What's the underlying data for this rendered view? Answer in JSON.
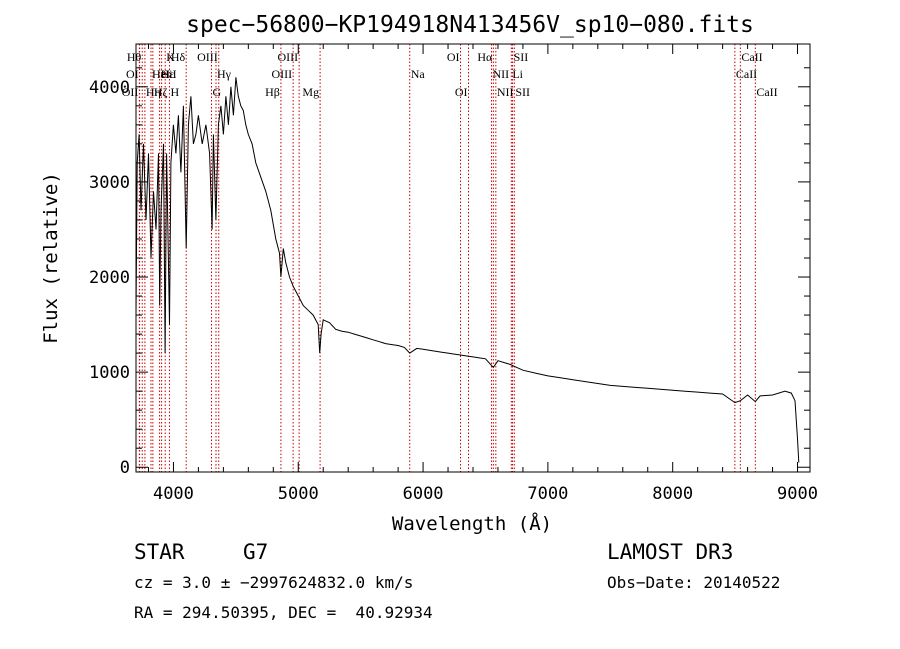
{
  "chart_data": {
    "type": "line",
    "title": "spec−56800−KP194918N413456V_sp10−080.fits",
    "xlabel": "Wavelength (Å)",
    "ylabel": "Flux (relative)",
    "xlim": [
      3700,
      9100
    ],
    "ylim": [
      -50,
      4450
    ],
    "xticks": [
      4000,
      5000,
      6000,
      7000,
      8000,
      9000
    ],
    "xtick_labels": [
      "4000",
      "5000",
      "6000",
      "7000",
      "8000",
      "9000"
    ],
    "yticks": [
      0,
      1000,
      2000,
      3000,
      4000
    ],
    "ytick_labels": [
      "0",
      "1000",
      "2000",
      "3000",
      "4000"
    ],
    "series": [
      {
        "name": "flux",
        "x": [
          3700,
          3710,
          3725,
          3740,
          3760,
          3780,
          3800,
          3820,
          3840,
          3860,
          3880,
          3890,
          3900,
          3920,
          3933,
          3945,
          3968,
          3980,
          4000,
          4020,
          4040,
          4060,
          4080,
          4102,
          4120,
          4140,
          4160,
          4180,
          4200,
          4230,
          4260,
          4290,
          4310,
          4320,
          4340,
          4360,
          4380,
          4400,
          4420,
          4440,
          4460,
          4480,
          4500,
          4520,
          4540,
          4560,
          4580,
          4600,
          4630,
          4660,
          4700,
          4740,
          4780,
          4820,
          4850,
          4861,
          4880,
          4900,
          4930,
          4960,
          5000,
          5040,
          5080,
          5120,
          5160,
          5172,
          5183,
          5200,
          5250,
          5300,
          5350,
          5400,
          5450,
          5500,
          5550,
          5600,
          5650,
          5700,
          5750,
          5800,
          5850,
          5893,
          5950,
          6000,
          6050,
          6100,
          6150,
          6200,
          6250,
          6300,
          6350,
          6400,
          6450,
          6500,
          6563,
          6600,
          6650,
          6700,
          6750,
          6800,
          6900,
          7000,
          7100,
          7200,
          7300,
          7400,
          7500,
          7600,
          7700,
          7800,
          7900,
          8000,
          8100,
          8200,
          8300,
          8400,
          8498,
          8542,
          8600,
          8662,
          8700,
          8800,
          8900,
          8950,
          8980,
          9000,
          9010
        ],
        "y": [
          1600,
          3200,
          3500,
          2700,
          3400,
          2600,
          3300,
          2200,
          2900,
          2500,
          3300,
          1700,
          2700,
          3400,
          1200,
          3300,
          1500,
          3200,
          3600,
          3300,
          3700,
          3100,
          3800,
          2300,
          3600,
          3900,
          3400,
          3500,
          3700,
          3400,
          3600,
          3300,
          2500,
          3500,
          2600,
          3600,
          3800,
          3500,
          3900,
          3600,
          4000,
          3700,
          4100,
          3900,
          3800,
          3750,
          3600,
          3500,
          3400,
          3200,
          3050,
          2900,
          2700,
          2400,
          2250,
          2000,
          2300,
          2150,
          2000,
          1900,
          1800,
          1700,
          1650,
          1600,
          1500,
          1200,
          1400,
          1550,
          1520,
          1450,
          1430,
          1420,
          1400,
          1380,
          1360,
          1340,
          1320,
          1300,
          1290,
          1280,
          1260,
          1200,
          1250,
          1240,
          1230,
          1220,
          1210,
          1200,
          1190,
          1180,
          1170,
          1160,
          1150,
          1140,
          1050,
          1120,
          1100,
          1080,
          1050,
          1020,
          990,
          960,
          940,
          920,
          900,
          880,
          860,
          850,
          840,
          830,
          820,
          810,
          800,
          790,
          780,
          770,
          680,
          700,
          760,
          690,
          750,
          760,
          800,
          780,
          700,
          300,
          50
        ]
      }
    ],
    "line_markers": [
      {
        "x": 3727,
        "label": "OII",
        "row": 2,
        "side": "left"
      },
      {
        "x": 3729,
        "label": "OI",
        "row": 1,
        "side": "left"
      },
      {
        "x": 3750,
        "label": "Hθ",
        "row": 0,
        "side": "left"
      },
      {
        "x": 3771,
        "label": "Hη",
        "row": 2,
        "side": "right"
      },
      {
        "x": 3820,
        "label": "HeI",
        "row": 1,
        "side": "right"
      },
      {
        "x": 3835,
        "label": "Hζ",
        "row": 2,
        "side": "right"
      },
      {
        "x": 3889,
        "label": "Hε",
        "row": 1,
        "side": "right"
      },
      {
        "x": 3905,
        "label": "SiI",
        "row": 1,
        "side": "right"
      },
      {
        "x": 3934,
        "label": "K",
        "row": 0,
        "side": "right"
      },
      {
        "x": 3968,
        "label": "H",
        "row": 2,
        "side": "right"
      },
      {
        "x": 4102,
        "label": "Hδ",
        "row": 0,
        "side": "left"
      },
      {
        "x": 4305,
        "label": "G",
        "row": 2,
        "side": "right"
      },
      {
        "x": 4341,
        "label": "Hγ",
        "row": 1,
        "side": "right"
      },
      {
        "x": 4363,
        "label": "OIII",
        "row": 0,
        "side": "left"
      },
      {
        "x": 4861,
        "label": "Hβ",
        "row": 2,
        "side": "left"
      },
      {
        "x": 4959,
        "label": "OIII",
        "row": 1,
        "side": "left"
      },
      {
        "x": 5007,
        "label": "OIII",
        "row": 0,
        "side": "left"
      },
      {
        "x": 5175,
        "label": "Mg",
        "row": 2,
        "side": "left"
      },
      {
        "x": 5893,
        "label": "Na",
        "row": 1,
        "side": "right"
      },
      {
        "x": 6300,
        "label": "OI",
        "row": 0,
        "side": "left"
      },
      {
        "x": 6364,
        "label": "OI",
        "row": 2,
        "side": "left"
      },
      {
        "x": 6548,
        "label": "NII",
        "row": 1,
        "side": "right"
      },
      {
        "x": 6563,
        "label": "Hα",
        "row": 0,
        "side": "left"
      },
      {
        "x": 6583,
        "label": "NII",
        "row": 2,
        "side": "right"
      },
      {
        "x": 6707,
        "label": "Li",
        "row": 1,
        "side": "right"
      },
      {
        "x": 6717,
        "label": "SII",
        "row": 0,
        "side": "right"
      },
      {
        "x": 6731,
        "label": "SII",
        "row": 2,
        "side": "right"
      },
      {
        "x": 8498,
        "label": "CaII",
        "row": 1,
        "side": "right"
      },
      {
        "x": 8542,
        "label": "CaII",
        "row": 0,
        "side": "right"
      },
      {
        "x": 8662,
        "label": "CaII",
        "row": 2,
        "side": "right"
      }
    ],
    "marker_color": "#cc0000"
  },
  "info": {
    "class_label": "STAR",
    "subclass": "G7",
    "survey": "LAMOST DR3",
    "cz_text": "cz = 3.0 ± −2997624832.0 km/s",
    "obs_date": "Obs−Date: 20140522",
    "coords": "RA = 294.50395, DEC =  40.92934"
  }
}
